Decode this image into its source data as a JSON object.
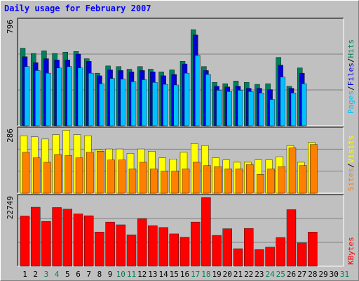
{
  "title": "Daily usage for February 2007",
  "colors": {
    "hits": "#00805c",
    "files": "#0000d8",
    "pages": "#00c0ff",
    "visits": "#ffff00",
    "sites": "#ff8000",
    "kbytes": "#ff0000",
    "weekend_day_label": "#00805c",
    "weekday_label": "#000000",
    "panel_bg": "#c0c0c0"
  },
  "chart_data": [
    {
      "type": "bar",
      "panel": "hits-files-pages",
      "x": [
        1,
        2,
        3,
        4,
        5,
        6,
        7,
        8,
        9,
        10,
        11,
        12,
        13,
        14,
        15,
        16,
        17,
        18,
        19,
        20,
        21,
        22,
        23,
        24,
        25,
        26,
        27,
        28
      ],
      "ymax_label": "796",
      "ylim": [
        0,
        796
      ],
      "series": [
        {
          "name": "Hits",
          "color": "#00805c",
          "values": [
            590,
            550,
            570,
            550,
            560,
            565,
            510,
            400,
            455,
            450,
            430,
            450,
            430,
            410,
            425,
            490,
            730,
            450,
            330,
            320,
            340,
            330,
            315,
            320,
            520,
            300,
            440,
            0
          ]
        },
        {
          "name": "Files",
          "color": "#0000d8",
          "values": [
            525,
            480,
            510,
            500,
            500,
            545,
            490,
            380,
            425,
            420,
            410,
            420,
            410,
            380,
            390,
            470,
            690,
            420,
            300,
            295,
            300,
            285,
            285,
            275,
            460,
            285,
            400,
            0
          ]
        },
        {
          "name": "Pages",
          "color": "#00c0ff",
          "values": [
            450,
            420,
            400,
            440,
            450,
            440,
            400,
            320,
            360,
            355,
            335,
            350,
            330,
            315,
            310,
            400,
            535,
            390,
            270,
            260,
            270,
            260,
            250,
            200,
            370,
            250,
            320,
            0
          ]
        }
      ]
    },
    {
      "type": "bar",
      "panel": "visits-sites",
      "x": [
        1,
        2,
        3,
        4,
        5,
        6,
        7,
        8,
        9,
        10,
        11,
        12,
        13,
        14,
        15,
        16,
        17,
        18,
        19,
        20,
        21,
        22,
        23,
        24,
        25,
        26,
        27,
        28
      ],
      "ymax_label": "286",
      "ylim": [
        0,
        286
      ],
      "series": [
        {
          "name": "Visits",
          "color": "#ffff00",
          "values": [
            260,
            255,
            245,
            265,
            285,
            265,
            260,
            195,
            200,
            200,
            180,
            200,
            190,
            160,
            155,
            185,
            225,
            215,
            160,
            150,
            140,
            140,
            150,
            150,
            165,
            215,
            140,
            230
          ]
        },
        {
          "name": "Sites",
          "color": "#ff8000",
          "values": [
            185,
            160,
            140,
            175,
            170,
            160,
            185,
            190,
            150,
            150,
            110,
            140,
            110,
            100,
            100,
            110,
            140,
            125,
            120,
            110,
            110,
            130,
            85,
            110,
            120,
            205,
            125,
            220
          ]
        }
      ]
    },
    {
      "type": "bar",
      "panel": "kbytes",
      "x": [
        1,
        2,
        3,
        4,
        5,
        6,
        7,
        8,
        9,
        10,
        11,
        12,
        13,
        14,
        15,
        16,
        17,
        18,
        19,
        20,
        21,
        22,
        23,
        24,
        25,
        26,
        27,
        28
      ],
      "ymax_label": "22749",
      "ylim": [
        0,
        22749
      ],
      "series": [
        {
          "name": "KBytes",
          "color": "#ff0000",
          "values": [
            16600,
            19500,
            14800,
            19400,
            18900,
            17300,
            16700,
            11300,
            14600,
            13700,
            10400,
            15700,
            13400,
            12800,
            10700,
            9600,
            14600,
            22700,
            10200,
            12400,
            5800,
            12500,
            5500,
            6300,
            9500,
            18700,
            7700,
            11300
          ]
        }
      ]
    }
  ],
  "legend_labels": {
    "pages": "Pages",
    "files": "Files",
    "hits": "Hits",
    "sep": "/",
    "sites": "Sites",
    "visits": "Visits",
    "kbytes": "KBytes"
  },
  "x_axis": {
    "labels": [
      "1",
      "2",
      "3",
      "4",
      "5",
      "6",
      "7",
      "8",
      "9",
      "10",
      "11",
      "12",
      "13",
      "14",
      "15",
      "16",
      "17",
      "18",
      "19",
      "20",
      "21",
      "22",
      "23",
      "24",
      "25",
      "26",
      "27",
      "28",
      "29",
      "30",
      "31"
    ],
    "weekend_days": [
      3,
      4,
      10,
      11,
      17,
      18,
      24,
      25,
      31
    ]
  }
}
